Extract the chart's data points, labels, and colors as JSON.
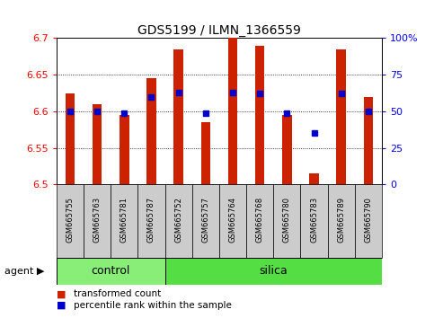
{
  "title": "GDS5199 / ILMN_1366559",
  "samples": [
    "GSM665755",
    "GSM665763",
    "GSM665781",
    "GSM665787",
    "GSM665752",
    "GSM665757",
    "GSM665764",
    "GSM665768",
    "GSM665780",
    "GSM665783",
    "GSM665789",
    "GSM665790"
  ],
  "groups": [
    "control",
    "control",
    "control",
    "control",
    "silica",
    "silica",
    "silica",
    "silica",
    "silica",
    "silica",
    "silica",
    "silica"
  ],
  "transformed_count": [
    6.625,
    6.61,
    6.595,
    6.645,
    6.685,
    6.585,
    6.7,
    6.69,
    6.595,
    6.515,
    6.685,
    6.62
  ],
  "percentile_rank": [
    50,
    50,
    49,
    60,
    63,
    49,
    63,
    62,
    49,
    35,
    62,
    50
  ],
  "ylim": [
    6.5,
    6.7
  ],
  "yticks_left": [
    6.5,
    6.55,
    6.6,
    6.65,
    6.7
  ],
  "yticks_right": [
    0,
    25,
    50,
    75,
    100
  ],
  "bar_color": "#cc2200",
  "dot_color": "#0000cc",
  "control_color": "#88ee77",
  "silica_color": "#55dd44",
  "tick_label_bg": "#cccccc",
  "agent_label": "agent",
  "control_label": "control",
  "silica_label": "silica",
  "legend_tc": "transformed count",
  "legend_pr": "percentile rank within the sample",
  "bar_width": 0.35
}
